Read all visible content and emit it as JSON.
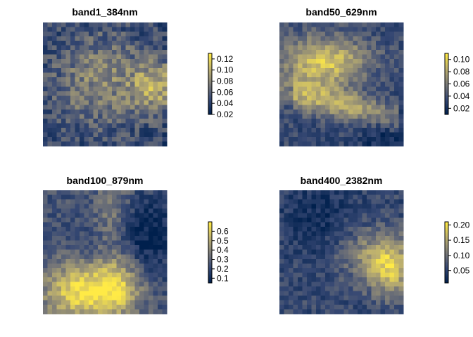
{
  "chart_data": [
    {
      "type": "heatmap",
      "title": "band1_384nm",
      "colorbar": {
        "ticks": [
          0.12,
          0.1,
          0.08,
          0.06,
          0.04,
          0.02
        ],
        "labels": [
          "0.12",
          "0.10",
          "0.08",
          "0.06",
          "0.04",
          "0.02"
        ],
        "range": [
          0.02,
          0.13
        ]
      },
      "grid": {
        "rows": 27,
        "cols": 27
      },
      "pattern": "noisy"
    },
    {
      "type": "heatmap",
      "title": "band50_629nm",
      "colorbar": {
        "ticks": [
          0.1,
          0.08,
          0.06,
          0.04,
          0.02
        ],
        "labels": [
          "0.10",
          "0.08",
          "0.06",
          "0.04",
          "0.02"
        ],
        "range": [
          0.01,
          0.11
        ]
      },
      "grid": {
        "rows": 27,
        "cols": 27
      },
      "pattern": "terrain"
    },
    {
      "type": "heatmap",
      "title": "band100_879nm",
      "colorbar": {
        "ticks": [
          0.6,
          0.5,
          0.4,
          0.3,
          0.2,
          0.1
        ],
        "labels": [
          "0.6",
          "0.5",
          "0.4",
          "0.3",
          "0.2",
          "0.1"
        ],
        "range": [
          0.05,
          0.7
        ]
      },
      "grid": {
        "rows": 27,
        "cols": 27
      },
      "pattern": "terrain"
    },
    {
      "type": "heatmap",
      "title": "band400_2382nm",
      "colorbar": {
        "ticks": [
          0.2,
          0.15,
          0.1,
          0.05
        ],
        "labels": [
          "0.20",
          "0.15",
          "0.10",
          "0.05"
        ],
        "range": [
          0.01,
          0.21
        ]
      },
      "grid": {
        "rows": 27,
        "cols": 27
      },
      "pattern": "terrain"
    }
  ],
  "colors": {
    "low": "#00204d",
    "mid": "#7c7b78",
    "high": "#ffea46"
  }
}
